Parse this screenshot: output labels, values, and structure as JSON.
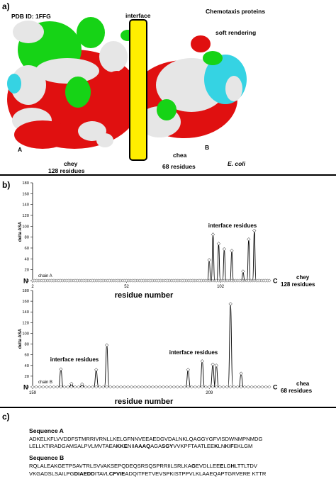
{
  "panel_a": {
    "label": "a)",
    "pdb": "PDB ID: 1FFG",
    "title": "Chemotaxis proteins",
    "subtitle": "soft rendering",
    "interface": "interface",
    "marker_a": "A",
    "marker_b": "B",
    "chey_name": "chey",
    "chey_res": "128 residues",
    "chea_name": "chea",
    "chea_res": "68 residues",
    "organism": "E. coli",
    "colors": {
      "red": "#e01010",
      "green": "#16d316",
      "white": "#e6e6e6",
      "cyan": "#35d3e3",
      "yellow": "#ffee00"
    }
  },
  "panel_b": {
    "label": "b)",
    "chart_data": [
      {
        "type": "line",
        "ylabel": "delta ASA",
        "xlabel": "residue number",
        "yticks": [
          "0",
          "20",
          "40",
          "60",
          "80",
          "100",
          "120",
          "140",
          "160",
          "180"
        ],
        "ylim": [
          0,
          180
        ],
        "xticks": [
          "2",
          "52",
          "102"
        ],
        "xlim": [
          2,
          128
        ],
        "annotation": "interface residues",
        "chain_label": "chain A",
        "end_n": "N",
        "end_c": "C",
        "protein": "chey",
        "protein_res": "128 residues",
        "peaks": [
          [
            96,
            38
          ],
          [
            98,
            85
          ],
          [
            101,
            68
          ],
          [
            104,
            58
          ],
          [
            108,
            55
          ],
          [
            114,
            17
          ],
          [
            117,
            76
          ],
          [
            120,
            92
          ]
        ],
        "peak_width": 0.9
      },
      {
        "type": "line",
        "ylabel": "delta ASA",
        "xlabel": "residue number",
        "yticks": [
          "0",
          "20",
          "40",
          "60",
          "80",
          "100",
          "120",
          "140",
          "160",
          "180"
        ],
        "ylim": [
          0,
          180
        ],
        "xticks": [
          "159",
          "209"
        ],
        "xlim": [
          159,
          226
        ],
        "annotation1": "interface residues",
        "annotation2": "interface residues",
        "chain_label": "chain B",
        "end_n": "N",
        "end_c": "C",
        "protein": "chea",
        "protein_res": "68 residues",
        "peaks": [
          [
            167,
            33
          ],
          [
            170,
            6
          ],
          [
            173,
            5
          ],
          [
            177,
            32
          ],
          [
            180,
            78
          ],
          [
            203,
            32
          ],
          [
            207,
            48
          ],
          [
            210,
            42
          ],
          [
            211,
            40
          ],
          [
            215,
            155
          ],
          [
            218,
            25
          ]
        ],
        "peak_width": 0.65
      }
    ]
  },
  "panel_c": {
    "label": "c)",
    "seq_a_title": "Sequence A",
    "seq_a_line1": "ADKELKFLVVDDFSTMRRIVRNLLKELGFNNVEEAEDGVDALNKLQAGGYGFVISDWNMPNMDG",
    "seq_a_line2": [
      {
        "t": "LELLKTIRADGAMSALPVLMVTAEA",
        "b": false
      },
      {
        "t": "KKE",
        "b": true
      },
      {
        "t": "NII",
        "b": false
      },
      {
        "t": "AAAQ",
        "b": true
      },
      {
        "t": "AGA",
        "b": false
      },
      {
        "t": "SGY",
        "b": true
      },
      {
        "t": "VVKPFTAATLEE",
        "b": false
      },
      {
        "t": "K",
        "b": true
      },
      {
        "t": "LN",
        "b": false
      },
      {
        "t": "K",
        "b": true
      },
      {
        "t": "I",
        "b": false
      },
      {
        "t": "F",
        "b": true
      },
      {
        "t": "EKLGM",
        "b": false
      }
    ],
    "seq_b_title": "Sequence B",
    "seq_b_line1": [
      {
        "t": "RQLALEAKGETPSAVTRLSVVAKSEPQDEQSRSQSPRRIILSRLKA",
        "b": false
      },
      {
        "t": "G",
        "b": true
      },
      {
        "t": "EVDLLEE",
        "b": false
      },
      {
        "t": "E",
        "b": true
      },
      {
        "t": "LG",
        "b": false
      },
      {
        "t": "H",
        "b": true
      },
      {
        "t": "LTTLTDV",
        "b": false
      }
    ],
    "seq_b_line2": [
      {
        "t": "VKGADSLSAILPG",
        "b": false
      },
      {
        "t": "DIAEDD",
        "b": true
      },
      {
        "t": "ITAVL",
        "b": false
      },
      {
        "t": "CFVIE",
        "b": true
      },
      {
        "t": "ADQITFETVEVSPKISTPPVLKLAAEQAPTGRVERE KTTR",
        "b": false
      }
    ]
  }
}
